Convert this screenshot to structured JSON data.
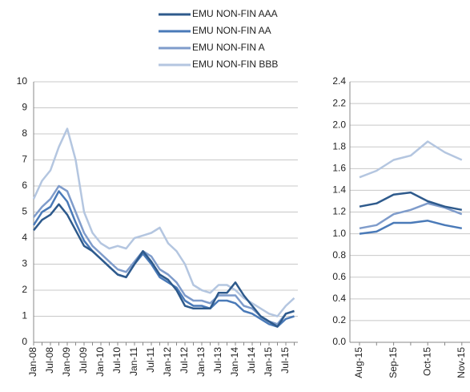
{
  "chart_data": [
    {
      "type": "line",
      "categories": [
        "Jan-08",
        null,
        "Jul-08",
        null,
        "Jan-09",
        null,
        "Jul-09",
        null,
        "Jan-10",
        null,
        "Jul-10",
        null,
        "Jan-11",
        null,
        "Jul-11",
        null,
        "Jan-12",
        null,
        "Jul-12",
        null,
        "Jan-13",
        null,
        "Jul-13",
        null,
        "Jan-14",
        null,
        "Jul-14",
        null,
        "Jan-15",
        null,
        "Jul-15",
        null
      ],
      "ylim": [
        0,
        10
      ],
      "yticks": [
        0,
        1,
        2,
        3,
        4,
        5,
        6,
        7,
        8,
        9,
        10
      ],
      "grid": true,
      "series": [
        {
          "name": "EMU NON-FIN AAA",
          "color": "#2e5a8c",
          "values": [
            4.3,
            4.7,
            4.9,
            5.3,
            4.9,
            4.3,
            3.7,
            3.5,
            3.2,
            2.9,
            2.6,
            2.5,
            3.0,
            3.5,
            3.1,
            2.6,
            2.4,
            2.0,
            1.4,
            1.3,
            1.3,
            1.3,
            1.9,
            1.9,
            2.3,
            1.8,
            1.4,
            1.0,
            0.8,
            0.6,
            1.1,
            1.2
          ]
        },
        {
          "name": "EMU NON-FIN AA",
          "color": "#4a7ab8",
          "values": [
            4.5,
            5.0,
            5.2,
            5.8,
            5.4,
            4.6,
            3.9,
            3.5,
            3.2,
            2.9,
            2.6,
            2.5,
            3.0,
            3.4,
            3.0,
            2.5,
            2.3,
            2.1,
            1.6,
            1.4,
            1.4,
            1.3,
            1.6,
            1.6,
            1.5,
            1.2,
            1.1,
            0.9,
            0.7,
            0.6,
            0.9,
            1.0
          ]
        },
        {
          "name": "EMU NON-FIN A",
          "color": "#7f9ccb",
          "values": [
            4.8,
            5.2,
            5.5,
            6.0,
            5.8,
            5.0,
            4.2,
            3.7,
            3.4,
            3.1,
            2.8,
            2.7,
            3.1,
            3.5,
            3.3,
            2.8,
            2.6,
            2.3,
            1.8,
            1.6,
            1.6,
            1.5,
            1.8,
            1.8,
            1.8,
            1.4,
            1.3,
            1.0,
            0.8,
            0.7,
            1.1,
            1.2
          ]
        },
        {
          "name": "EMU NON-FIN BBB",
          "color": "#b4c6e0",
          "values": [
            5.5,
            6.2,
            6.6,
            7.5,
            8.2,
            7.0,
            5.0,
            4.2,
            3.8,
            3.6,
            3.7,
            3.6,
            4.0,
            4.1,
            4.2,
            4.4,
            3.8,
            3.5,
            3.0,
            2.2,
            2.0,
            1.9,
            2.2,
            2.2,
            2.0,
            1.7,
            1.5,
            1.3,
            1.1,
            1.0,
            1.4,
            1.7
          ]
        }
      ]
    },
    {
      "type": "line",
      "categories": [
        "Aug-15",
        null,
        "Sep-15",
        null,
        "Oct-15",
        null,
        "Nov-15"
      ],
      "ylim": [
        0,
        2.4
      ],
      "yticks": [
        {
          "value": 0,
          "label": "0.0"
        },
        {
          "value": 0.2,
          "label": "0.2"
        },
        {
          "value": 0.4,
          "label": "0.4"
        },
        {
          "value": 0.6,
          "label": "0.6"
        },
        {
          "value": 0.8,
          "label": "0.8"
        },
        {
          "value": 1,
          "label": "1.0"
        },
        {
          "value": 1.2,
          "label": "1.2"
        },
        {
          "value": 1.4,
          "label": "1.4"
        },
        {
          "value": 1.6,
          "label": "1.6"
        },
        {
          "value": 1.8,
          "label": "1.8"
        },
        {
          "value": 2,
          "label": "2.0"
        },
        {
          "value": 2.2,
          "label": "2.2"
        },
        {
          "value": 2.4,
          "label": "2.4"
        }
      ],
      "grid": true,
      "series": [
        {
          "color": "#2e5a8c",
          "values": [
            1.25,
            1.28,
            1.36,
            1.38,
            1.3,
            1.25,
            1.22
          ]
        },
        {
          "color": "#4a7ab8",
          "values": [
            1.0,
            1.02,
            1.1,
            1.1,
            1.12,
            1.08,
            1.05
          ]
        },
        {
          "color": "#7f9ccb",
          "values": [
            1.05,
            1.08,
            1.18,
            1.22,
            1.28,
            1.24,
            1.18
          ]
        },
        {
          "color": "#b4c6e0",
          "values": [
            1.52,
            1.58,
            1.68,
            1.72,
            1.85,
            1.75,
            1.68
          ]
        }
      ]
    }
  ]
}
